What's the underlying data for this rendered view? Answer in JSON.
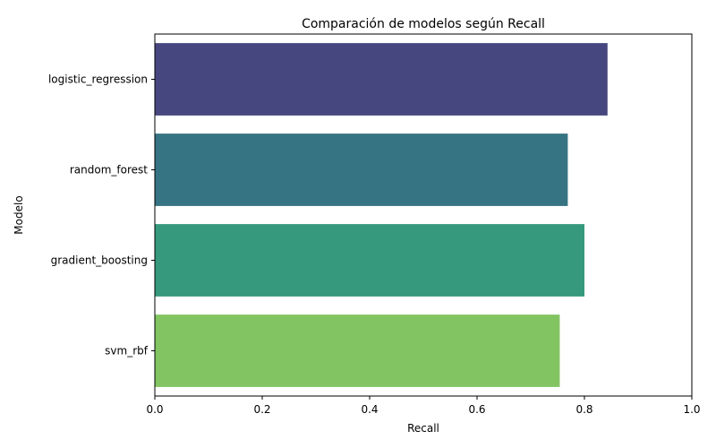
{
  "chart_data": {
    "type": "bar",
    "orientation": "horizontal",
    "title": "Comparación de modelos según Recall",
    "xlabel": "Recall",
    "ylabel": "Modelo",
    "xlim": [
      0,
      1
    ],
    "xticks": [
      "0.0",
      "0.2",
      "0.4",
      "0.6",
      "0.8",
      "1.0"
    ],
    "categories": [
      "logistic_regression",
      "random_forest",
      "gradient_boosting",
      "svm_rbf"
    ],
    "values": [
      0.843,
      0.769,
      0.8,
      0.754
    ],
    "colors": [
      "#47477f",
      "#367483",
      "#36997e",
      "#82c462"
    ],
    "grid": false,
    "legend": "none"
  }
}
